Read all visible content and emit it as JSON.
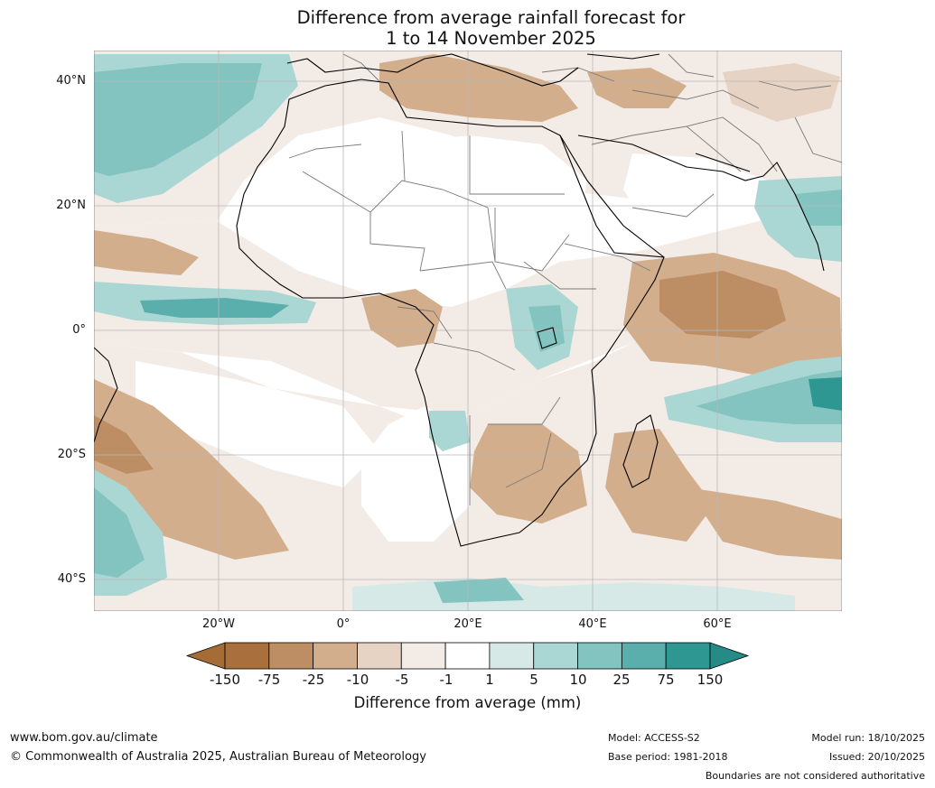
{
  "title": {
    "line1": "Difference from average rainfall forecast for",
    "line2": "1 to 14 November 2025"
  },
  "map": {
    "lat_labels": [
      "40°N",
      "20°N",
      "0°",
      "20°S",
      "40°S"
    ],
    "lon_labels": [
      "20°W",
      "0°",
      "20°E",
      "40°E",
      "60°E"
    ]
  },
  "colorbar": {
    "ticks": [
      "-150",
      "-75",
      "-25",
      "-10",
      "-5",
      "-1",
      "1",
      "5",
      "10",
      "25",
      "75",
      "150"
    ],
    "colors": [
      "#a66c35",
      "#a96f3c",
      "#bd8e63",
      "#d2ae8c",
      "#e7d3c3",
      "#f3ece6",
      "#ffffff",
      "#d6e9e7",
      "#aad6d3",
      "#83c3c0",
      "#5aaeab",
      "#2f9791",
      "#268a86"
    ],
    "title": "Difference from average (mm)"
  },
  "footer": {
    "website": "www.bom.gov.au/climate",
    "copyright": "© Commonwealth of Australia 2025, Australian Bureau of Meteorology",
    "model": "Model: ACCESS-S2",
    "base_period": "Base period: 1981-2018",
    "model_run": "Model run: 18/10/2025",
    "issued": "Issued: 20/10/2025",
    "disclaimer": "Boundaries are not considered authoritative"
  }
}
